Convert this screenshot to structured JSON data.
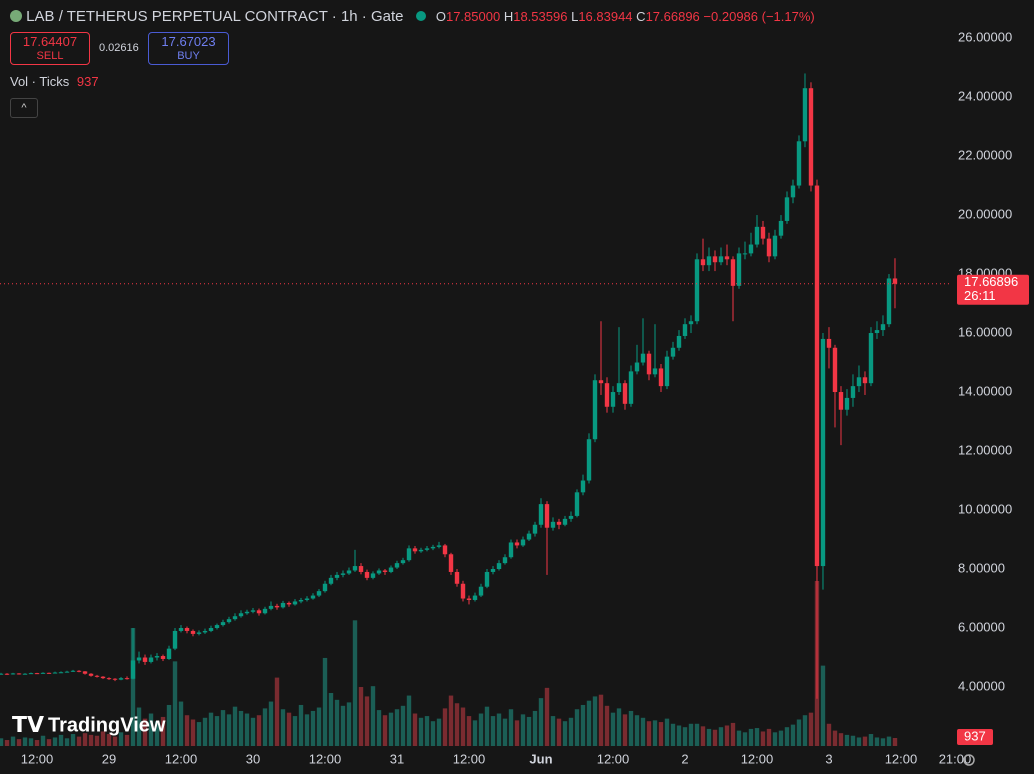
{
  "header": {
    "symbol": "LAB / TETHERUS PERPETUAL CONTRACT · 1h · Gate",
    "open_key": "O",
    "open": "17.85000",
    "high_key": "H",
    "high": "18.53596",
    "low_key": "L",
    "low": "16.83944",
    "close_key": "C",
    "close": "17.66896",
    "change": "−0.20986 (−1.17%)"
  },
  "trade": {
    "sell_price": "17.64407",
    "sell_label": "SELL",
    "spread": "0.02616",
    "buy_price": "17.67023",
    "buy_label": "BUY"
  },
  "volume_legend": {
    "label": "Vol · Ticks"
  },
  "countdown": "26:11",
  "logo": "TradingView",
  "chart_data": {
    "type": "candlestick",
    "up_color": "#089981",
    "down_color": "#f23645",
    "up_volume_color": "#1b5e55",
    "down_volume_color": "#7a2b30",
    "grid": true,
    "ylim": [
      2,
      27.29
    ],
    "yticks": [
      {
        "value": 4,
        "label": "4.00000"
      },
      {
        "value": 6,
        "label": "6.00000"
      },
      {
        "value": 8,
        "label": "8.00000"
      },
      {
        "value": 10,
        "label": "10.00000"
      },
      {
        "value": 12,
        "label": "12.00000"
      },
      {
        "value": 14,
        "label": "14.00000"
      },
      {
        "value": 16,
        "label": "16.00000"
      },
      {
        "value": 18,
        "label": "18.00000"
      },
      {
        "value": 20,
        "label": "20.00000"
      },
      {
        "value": 22,
        "label": "22.00000"
      },
      {
        "value": 24,
        "label": "24.00000"
      },
      {
        "value": 26,
        "label": "26.00000"
      }
    ],
    "xlim": [
      -0.17,
      158.17
    ],
    "xticks": [
      {
        "value": 6,
        "label": "12:00"
      },
      {
        "value": 18,
        "label": "29"
      },
      {
        "value": 30,
        "label": "12:00"
      },
      {
        "value": 42,
        "label": "30"
      },
      {
        "value": 54,
        "label": "12:00"
      },
      {
        "value": 66,
        "label": "31"
      },
      {
        "value": 78,
        "label": "12:00"
      },
      {
        "value": 90,
        "label": "Jun"
      },
      {
        "value": 102,
        "label": "12:00"
      },
      {
        "value": 114,
        "label": "2"
      },
      {
        "value": 126,
        "label": "12:00"
      },
      {
        "value": 138,
        "label": "3"
      },
      {
        "value": 150,
        "label": "12:00"
      },
      {
        "value": 159,
        "label": "21:00"
      }
    ],
    "ohlc": [
      [
        4.44,
        4.48,
        4.42,
        4.45
      ],
      [
        4.45,
        4.47,
        4.41,
        4.43
      ],
      [
        4.43,
        4.48,
        4.42,
        4.46
      ],
      [
        4.46,
        4.47,
        4.42,
        4.44
      ],
      [
        4.44,
        4.47,
        4.43,
        4.45
      ],
      [
        4.45,
        4.49,
        4.44,
        4.47
      ],
      [
        4.47,
        4.48,
        4.44,
        4.46
      ],
      [
        4.46,
        4.5,
        4.45,
        4.48
      ],
      [
        4.48,
        4.49,
        4.45,
        4.47
      ],
      [
        4.47,
        4.52,
        4.46,
        4.49
      ],
      [
        4.49,
        4.53,
        4.48,
        4.5
      ],
      [
        4.5,
        4.55,
        4.49,
        4.52
      ],
      [
        4.52,
        4.58,
        4.51,
        4.55
      ],
      [
        4.55,
        4.57,
        4.5,
        4.53
      ],
      [
        4.53,
        4.54,
        4.42,
        4.45
      ],
      [
        4.45,
        4.47,
        4.35,
        4.38
      ],
      [
        4.38,
        4.41,
        4.32,
        4.35
      ],
      [
        4.35,
        4.37,
        4.27,
        4.3
      ],
      [
        4.3,
        4.33,
        4.24,
        4.28
      ],
      [
        4.28,
        4.3,
        4.2,
        4.25
      ],
      [
        4.25,
        4.34,
        4.23,
        4.3
      ],
      [
        4.3,
        4.36,
        4.25,
        4.28
      ],
      [
        4.28,
        6,
        4.26,
        4.9
      ],
      [
        4.9,
        5.2,
        4.8,
        5
      ],
      [
        5,
        5.1,
        4.75,
        4.85
      ],
      [
        4.85,
        5.1,
        4.8,
        5
      ],
      [
        5,
        5.15,
        4.9,
        5.05
      ],
      [
        5.05,
        5.1,
        4.88,
        4.95
      ],
      [
        4.95,
        5.4,
        4.92,
        5.3
      ],
      [
        5.3,
        6,
        5.25,
        5.9
      ],
      [
        5.9,
        6.1,
        5.85,
        6
      ],
      [
        6,
        6.05,
        5.82,
        5.9
      ],
      [
        5.9,
        5.95,
        5.72,
        5.8
      ],
      [
        5.8,
        5.92,
        5.75,
        5.85
      ],
      [
        5.85,
        5.98,
        5.8,
        5.9
      ],
      [
        5.9,
        6.08,
        5.86,
        6
      ],
      [
        6,
        6.15,
        5.95,
        6.1
      ],
      [
        6.1,
        6.28,
        6.05,
        6.2
      ],
      [
        6.2,
        6.38,
        6.15,
        6.3
      ],
      [
        6.3,
        6.5,
        6.25,
        6.4
      ],
      [
        6.4,
        6.6,
        6.35,
        6.5
      ],
      [
        6.5,
        6.62,
        6.45,
        6.55
      ],
      [
        6.55,
        6.68,
        6.5,
        6.6
      ],
      [
        6.6,
        6.66,
        6.42,
        6.5
      ],
      [
        6.5,
        6.72,
        6.46,
        6.65
      ],
      [
        6.65,
        6.9,
        6.6,
        6.75
      ],
      [
        6.75,
        6.82,
        6.62,
        6.7
      ],
      [
        6.7,
        6.92,
        6.66,
        6.85
      ],
      [
        6.85,
        6.9,
        6.72,
        6.8
      ],
      [
        6.8,
        6.98,
        6.76,
        6.9
      ],
      [
        6.9,
        7.02,
        6.84,
        6.95
      ],
      [
        6.95,
        7.08,
        6.9,
        7
      ],
      [
        7,
        7.18,
        6.96,
        7.1
      ],
      [
        7.1,
        7.32,
        7.05,
        7.25
      ],
      [
        7.25,
        7.6,
        7.2,
        7.5
      ],
      [
        7.5,
        7.8,
        7.45,
        7.7
      ],
      [
        7.7,
        7.9,
        7.62,
        7.8
      ],
      [
        7.8,
        7.95,
        7.72,
        7.85
      ],
      [
        7.85,
        8.05,
        7.8,
        7.95
      ],
      [
        7.95,
        8.65,
        7.9,
        8.1
      ],
      [
        8.1,
        8.2,
        7.82,
        7.9
      ],
      [
        7.9,
        7.98,
        7.62,
        7.7
      ],
      [
        7.7,
        7.92,
        7.65,
        7.85
      ],
      [
        7.85,
        8.02,
        7.8,
        7.95
      ],
      [
        7.95,
        8,
        7.8,
        7.9
      ],
      [
        7.9,
        8.12,
        7.86,
        8.05
      ],
      [
        8.05,
        8.28,
        8,
        8.2
      ],
      [
        8.2,
        8.38,
        8.15,
        8.3
      ],
      [
        8.3,
        8.8,
        8.25,
        8.7
      ],
      [
        8.7,
        8.78,
        8.52,
        8.6
      ],
      [
        8.6,
        8.72,
        8.55,
        8.65
      ],
      [
        8.65,
        8.78,
        8.6,
        8.7
      ],
      [
        8.7,
        8.82,
        8.64,
        8.75
      ],
      [
        8.75,
        8.92,
        8.7,
        8.8
      ],
      [
        8.8,
        8.85,
        8.4,
        8.5
      ],
      [
        8.5,
        8.55,
        7.8,
        7.9
      ],
      [
        7.9,
        8,
        7.4,
        7.5
      ],
      [
        7.5,
        7.6,
        6.9,
        7
      ],
      [
        7,
        7.1,
        6.8,
        6.95
      ],
      [
        6.95,
        7.2,
        6.9,
        7.1
      ],
      [
        7.1,
        7.5,
        7.05,
        7.4
      ],
      [
        7.4,
        8,
        7.35,
        7.9
      ],
      [
        7.9,
        8.1,
        7.82,
        8
      ],
      [
        8,
        8.3,
        7.95,
        8.2
      ],
      [
        8.2,
        8.5,
        8.15,
        8.4
      ],
      [
        8.4,
        9,
        8.35,
        8.9
      ],
      [
        8.9,
        9,
        8.7,
        8.8
      ],
      [
        8.8,
        9.1,
        8.75,
        9
      ],
      [
        9,
        9.3,
        8.95,
        9.2
      ],
      [
        9.2,
        9.6,
        9.1,
        9.5
      ],
      [
        9.5,
        10.4,
        9.4,
        10.2
      ],
      [
        10.2,
        10.3,
        7.8,
        9.4
      ],
      [
        9.4,
        9.75,
        9.3,
        9.6
      ],
      [
        9.6,
        9.7,
        9.35,
        9.5
      ],
      [
        9.5,
        9.8,
        9.45,
        9.7
      ],
      [
        9.7,
        9.95,
        9.6,
        9.8
      ],
      [
        9.8,
        10.7,
        9.75,
        10.6
      ],
      [
        10.6,
        11.2,
        10.5,
        11
      ],
      [
        11,
        12.6,
        10.9,
        12.4
      ],
      [
        12.4,
        14.6,
        12.3,
        14.4
      ],
      [
        14.4,
        16.4,
        13.9,
        14.3
      ],
      [
        14.3,
        14.5,
        13.3,
        13.5
      ],
      [
        13.5,
        14.2,
        13.3,
        14
      ],
      [
        14,
        16.2,
        13.9,
        14.3
      ],
      [
        14.3,
        14.4,
        13.4,
        13.6
      ],
      [
        13.6,
        14.9,
        13.5,
        14.7
      ],
      [
        14.7,
        15.6,
        14.6,
        15
      ],
      [
        15,
        16.5,
        14.9,
        15.3
      ],
      [
        15.3,
        15.4,
        14.4,
        14.6
      ],
      [
        14.6,
        16.3,
        14.5,
        14.8
      ],
      [
        14.8,
        14.95,
        14,
        14.2
      ],
      [
        14.2,
        15.4,
        14.1,
        15.2
      ],
      [
        15.2,
        15.7,
        15.1,
        15.5
      ],
      [
        15.5,
        16.1,
        15.4,
        15.9
      ],
      [
        15.9,
        16.5,
        15.8,
        16.3
      ],
      [
        16.3,
        16.6,
        16,
        16.4
      ],
      [
        16.4,
        18.7,
        16.3,
        18.5
      ],
      [
        18.5,
        19.2,
        18.1,
        18.3
      ],
      [
        18.3,
        18.9,
        18.1,
        18.6
      ],
      [
        18.6,
        18.8,
        18.1,
        18.4
      ],
      [
        18.4,
        18.9,
        18.3,
        18.6
      ],
      [
        18.6,
        19,
        18.3,
        18.5
      ],
      [
        18.5,
        18.6,
        16.4,
        17.6
      ],
      [
        17.6,
        18.9,
        17.5,
        18.7
      ],
      [
        18.7,
        19.1,
        18.5,
        18.7
      ],
      [
        18.7,
        19.4,
        18.6,
        19
      ],
      [
        19,
        20,
        18.9,
        19.6
      ],
      [
        19.6,
        19.8,
        19,
        19.2
      ],
      [
        19.2,
        19.4,
        18.4,
        18.6
      ],
      [
        18.6,
        19.5,
        18.5,
        19.3
      ],
      [
        19.3,
        20,
        19.2,
        19.8
      ],
      [
        19.8,
        20.8,
        19.7,
        20.6
      ],
      [
        20.6,
        21.2,
        20.4,
        21
      ],
      [
        21,
        22.7,
        20.9,
        22.5
      ],
      [
        22.5,
        24.8,
        22.3,
        24.3
      ],
      [
        24.3,
        24.5,
        20.8,
        21
      ],
      [
        21,
        21.2,
        3.6,
        8.1
      ],
      [
        8.1,
        16,
        7.3,
        15.8
      ],
      [
        15.8,
        16.2,
        14.8,
        15.5
      ],
      [
        15.5,
        15.6,
        12.8,
        14
      ],
      [
        14,
        14.2,
        12.2,
        13.4
      ],
      [
        13.4,
        14.1,
        13.2,
        13.8
      ],
      [
        13.8,
        14.6,
        13.5,
        14.2
      ],
      [
        14.2,
        14.9,
        14,
        14.5
      ],
      [
        14.5,
        14.7,
        13.9,
        14.3
      ],
      [
        14.3,
        16.2,
        14.2,
        16
      ],
      [
        16,
        16.4,
        15.8,
        16.1
      ],
      [
        16.1,
        16.6,
        15.9,
        16.3
      ],
      [
        16.3,
        18,
        16.2,
        17.85
      ],
      [
        17.85,
        18.53596,
        16.83944,
        17.66896
      ]
    ],
    "volume": [
      900,
      700,
      1100,
      800,
      1000,
      900,
      700,
      1200,
      800,
      1000,
      1300,
      900,
      1400,
      1100,
      1500,
      1300,
      1200,
      1700,
      1400,
      1100,
      1600,
      1300,
      13800,
      4500,
      3200,
      3800,
      2900,
      3400,
      4800,
      9900,
      5200,
      3600,
      3100,
      2800,
      3300,
      3900,
      3500,
      4200,
      3700,
      4600,
      4100,
      3800,
      3300,
      3600,
      4400,
      5200,
      8000,
      4300,
      3900,
      3500,
      4800,
      3700,
      4100,
      4500,
      10300,
      6200,
      5400,
      4700,
      5100,
      14700,
      6900,
      5800,
      7000,
      4200,
      3600,
      3900,
      4300,
      4700,
      5900,
      3800,
      3300,
      3500,
      2900,
      3200,
      4400,
      5900,
      5000,
      4500,
      3500,
      3000,
      3800,
      4600,
      3500,
      3800,
      3200,
      4300,
      3000,
      3700,
      3400,
      4100,
      5600,
      6800,
      3500,
      3200,
      2900,
      3300,
      4300,
      4800,
      5300,
      5800,
      6000,
      4700,
      3900,
      4400,
      3700,
      4100,
      3600,
      3300,
      2900,
      3000,
      2800,
      3200,
      2600,
      2400,
      2200,
      2600,
      2600,
      2300,
      2000,
      1900,
      2200,
      2400,
      2700,
      1800,
      1600,
      2000,
      2100,
      1700,
      2000,
      1600,
      1800,
      2200,
      2500,
      3100,
      3600,
      3900,
      19300,
      9400,
      2600,
      1800,
      1500,
      1300,
      1200,
      1000,
      1100,
      1400,
      1000,
      900,
      1100,
      937
    ]
  }
}
